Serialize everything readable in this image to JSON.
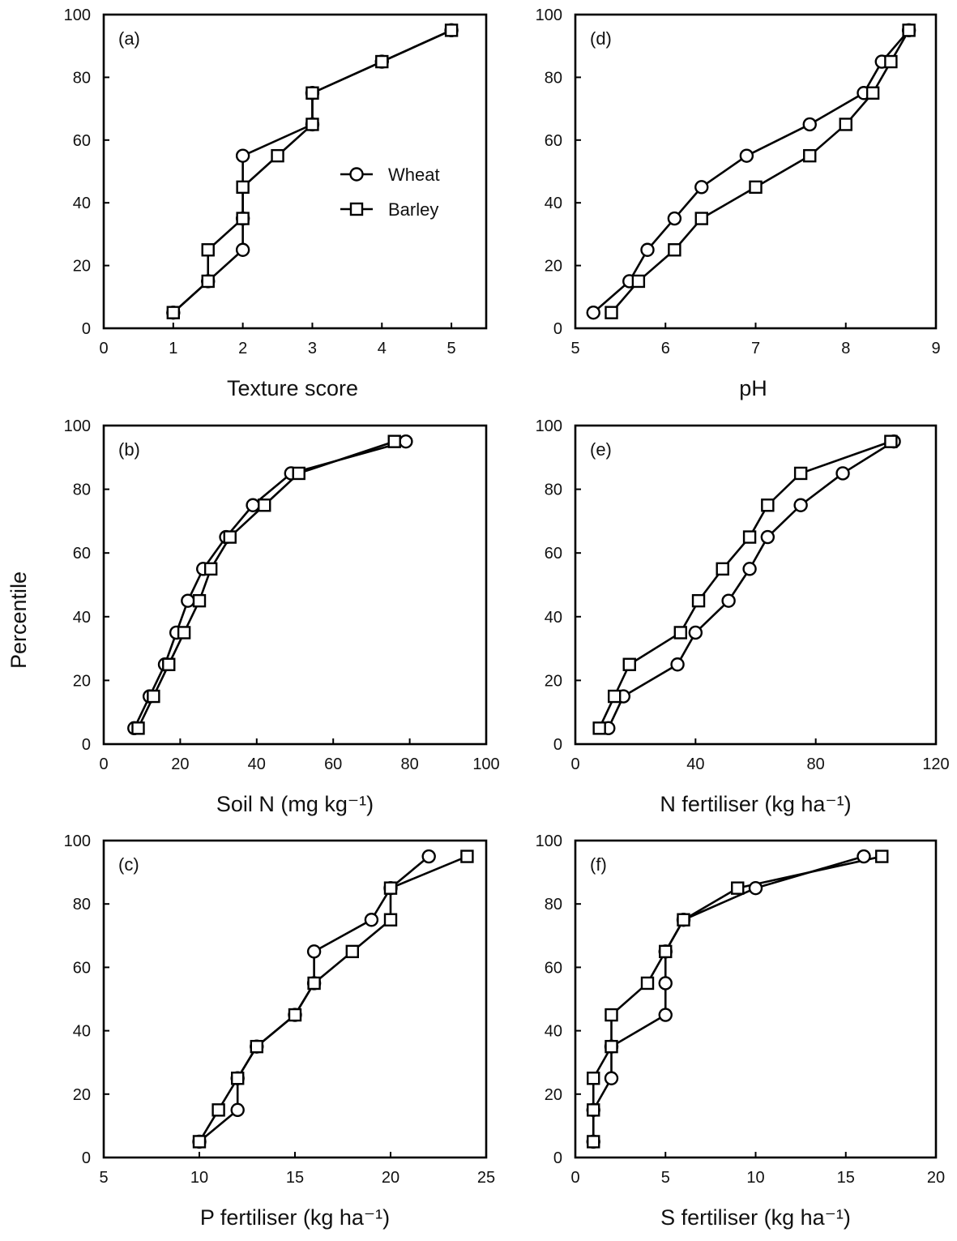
{
  "figure": {
    "ylabel": "Percentile",
    "legend": {
      "position": "inside panel (a), center-right",
      "entries": [
        {
          "name": "Wheat",
          "marker": "circle"
        },
        {
          "name": "Barley",
          "marker": "square"
        }
      ]
    }
  },
  "chart_data": [
    {
      "id": "a",
      "panel_label": "(a)",
      "type": "line",
      "xlabel": "Texture score",
      "xlim": [
        0,
        5.5
      ],
      "ylim": [
        0,
        100
      ],
      "xticks": [
        0,
        1,
        2,
        3,
        4,
        5
      ],
      "yticks": [
        0,
        20,
        40,
        60,
        80,
        100
      ],
      "xtick_labels": [
        "0",
        "1",
        "2",
        "3",
        "4",
        "5"
      ],
      "ytick_labels": [
        "0",
        "20",
        "40",
        "60",
        "80",
        "100"
      ],
      "series": [
        {
          "name": "Wheat",
          "marker": "circle",
          "x": [
            1,
            1.5,
            2,
            2,
            2,
            3,
            3,
            4,
            5
          ],
          "y": [
            5,
            15,
            25,
            35,
            55,
            65,
            75,
            85,
            95
          ]
        },
        {
          "name": "Barley",
          "marker": "square",
          "x": [
            1,
            1.5,
            1.5,
            2,
            2,
            2.5,
            3,
            3,
            4,
            5
          ],
          "y": [
            5,
            15,
            25,
            35,
            45,
            55,
            65,
            75,
            85,
            95
          ]
        }
      ]
    },
    {
      "id": "d",
      "panel_label": "(d)",
      "type": "line",
      "xlabel": "pH",
      "xlim": [
        5,
        9
      ],
      "ylim": [
        0,
        100
      ],
      "xticks": [
        5,
        6,
        7,
        8,
        9
      ],
      "yticks": [
        0,
        20,
        40,
        60,
        80,
        100
      ],
      "xtick_labels": [
        "5",
        "6",
        "7",
        "8",
        "9"
      ],
      "ytick_labels": [
        "0",
        "20",
        "40",
        "60",
        "80",
        "100"
      ],
      "series": [
        {
          "name": "Wheat",
          "marker": "circle",
          "x": [
            5.2,
            5.6,
            5.8,
            6.1,
            6.4,
            6.9,
            7.6,
            8.2,
            8.4,
            8.7
          ],
          "y": [
            5,
            15,
            25,
            35,
            45,
            55,
            65,
            75,
            85,
            95
          ]
        },
        {
          "name": "Barley",
          "marker": "square",
          "x": [
            5.4,
            5.7,
            6.1,
            6.4,
            7.0,
            7.6,
            8.0,
            8.3,
            8.5,
            8.7
          ],
          "y": [
            5,
            15,
            25,
            35,
            45,
            55,
            65,
            75,
            85,
            95
          ]
        }
      ]
    },
    {
      "id": "b",
      "panel_label": "(b)",
      "type": "line",
      "xlabel": "Soil N (mg kg⁻¹)",
      "xlim": [
        0,
        100
      ],
      "ylim": [
        0,
        100
      ],
      "xticks": [
        0,
        20,
        40,
        60,
        80,
        100
      ],
      "yticks": [
        0,
        20,
        40,
        60,
        80,
        100
      ],
      "xtick_labels": [
        "0",
        "20",
        "40",
        "60",
        "80",
        "100"
      ],
      "ytick_labels": [
        "0",
        "20",
        "40",
        "60",
        "80",
        "100"
      ],
      "series": [
        {
          "name": "Wheat",
          "marker": "circle",
          "x": [
            8,
            12,
            16,
            19,
            22,
            26,
            32,
            39,
            49,
            79
          ],
          "y": [
            5,
            15,
            25,
            35,
            45,
            55,
            65,
            75,
            85,
            95
          ]
        },
        {
          "name": "Barley",
          "marker": "square",
          "x": [
            9,
            13,
            17,
            21,
            25,
            28,
            33,
            42,
            51,
            76
          ],
          "y": [
            5,
            15,
            25,
            35,
            45,
            55,
            65,
            75,
            85,
            95
          ]
        }
      ]
    },
    {
      "id": "e",
      "panel_label": "(e)",
      "type": "line",
      "xlabel": "N fertiliser (kg ha⁻¹)",
      "xlim": [
        0,
        120
      ],
      "ylim": [
        0,
        100
      ],
      "xticks": [
        0,
        40,
        80,
        120
      ],
      "yticks": [
        0,
        20,
        40,
        60,
        80,
        100
      ],
      "xtick_labels": [
        "0",
        "40",
        "80",
        "120"
      ],
      "ytick_labels": [
        "0",
        "20",
        "40",
        "60",
        "80",
        "100"
      ],
      "series": [
        {
          "name": "Wheat",
          "marker": "circle",
          "x": [
            11,
            16,
            34,
            40,
            51,
            58,
            64,
            75,
            89,
            106
          ],
          "y": [
            5,
            15,
            25,
            35,
            45,
            55,
            65,
            75,
            85,
            95
          ]
        },
        {
          "name": "Barley",
          "marker": "square",
          "x": [
            8,
            13,
            18,
            35,
            41,
            49,
            58,
            64,
            75,
            105
          ],
          "y": [
            5,
            15,
            25,
            35,
            45,
            55,
            65,
            75,
            85,
            95
          ]
        }
      ]
    },
    {
      "id": "c",
      "panel_label": "(c)",
      "type": "line",
      "xlabel": "P fertiliser (kg ha⁻¹)",
      "xlim": [
        5,
        25
      ],
      "ylim": [
        0,
        100
      ],
      "xticks": [
        5,
        10,
        15,
        20,
        25
      ],
      "yticks": [
        0,
        20,
        40,
        60,
        80,
        100
      ],
      "xtick_labels": [
        "5",
        "10",
        "15",
        "20",
        "25"
      ],
      "ytick_labels": [
        "0",
        "20",
        "40",
        "60",
        "80",
        "100"
      ],
      "series": [
        {
          "name": "Wheat",
          "marker": "circle",
          "x": [
            10,
            12,
            12,
            13,
            15,
            16,
            16,
            19,
            20,
            22
          ],
          "y": [
            5,
            15,
            25,
            35,
            45,
            55,
            65,
            75,
            85,
            95
          ]
        },
        {
          "name": "Barley",
          "marker": "square",
          "x": [
            10,
            11,
            12,
            13,
            15,
            16,
            18,
            20,
            20,
            24
          ],
          "y": [
            5,
            15,
            25,
            35,
            45,
            55,
            65,
            75,
            85,
            95
          ]
        }
      ]
    },
    {
      "id": "f",
      "panel_label": "(f)",
      "type": "line",
      "xlabel": "S fertiliser (kg ha⁻¹)",
      "xlim": [
        0,
        20
      ],
      "ylim": [
        0,
        100
      ],
      "xticks": [
        0,
        5,
        10,
        15,
        20
      ],
      "yticks": [
        0,
        20,
        40,
        60,
        80,
        100
      ],
      "xtick_labels": [
        "0",
        "5",
        "10",
        "15",
        "20"
      ],
      "ytick_labels": [
        "0",
        "20",
        "40",
        "60",
        "80",
        "100"
      ],
      "series": [
        {
          "name": "Wheat",
          "marker": "circle",
          "x": [
            1,
            1,
            2,
            2,
            5,
            5,
            5,
            6,
            10,
            16
          ],
          "y": [
            5,
            15,
            25,
            35,
            45,
            55,
            65,
            75,
            85,
            95
          ]
        },
        {
          "name": "Barley",
          "marker": "square",
          "x": [
            1,
            1,
            1,
            2,
            2,
            4,
            5,
            6,
            9,
            17
          ],
          "y": [
            5,
            15,
            25,
            35,
            45,
            55,
            65,
            75,
            85,
            95
          ]
        }
      ]
    }
  ]
}
